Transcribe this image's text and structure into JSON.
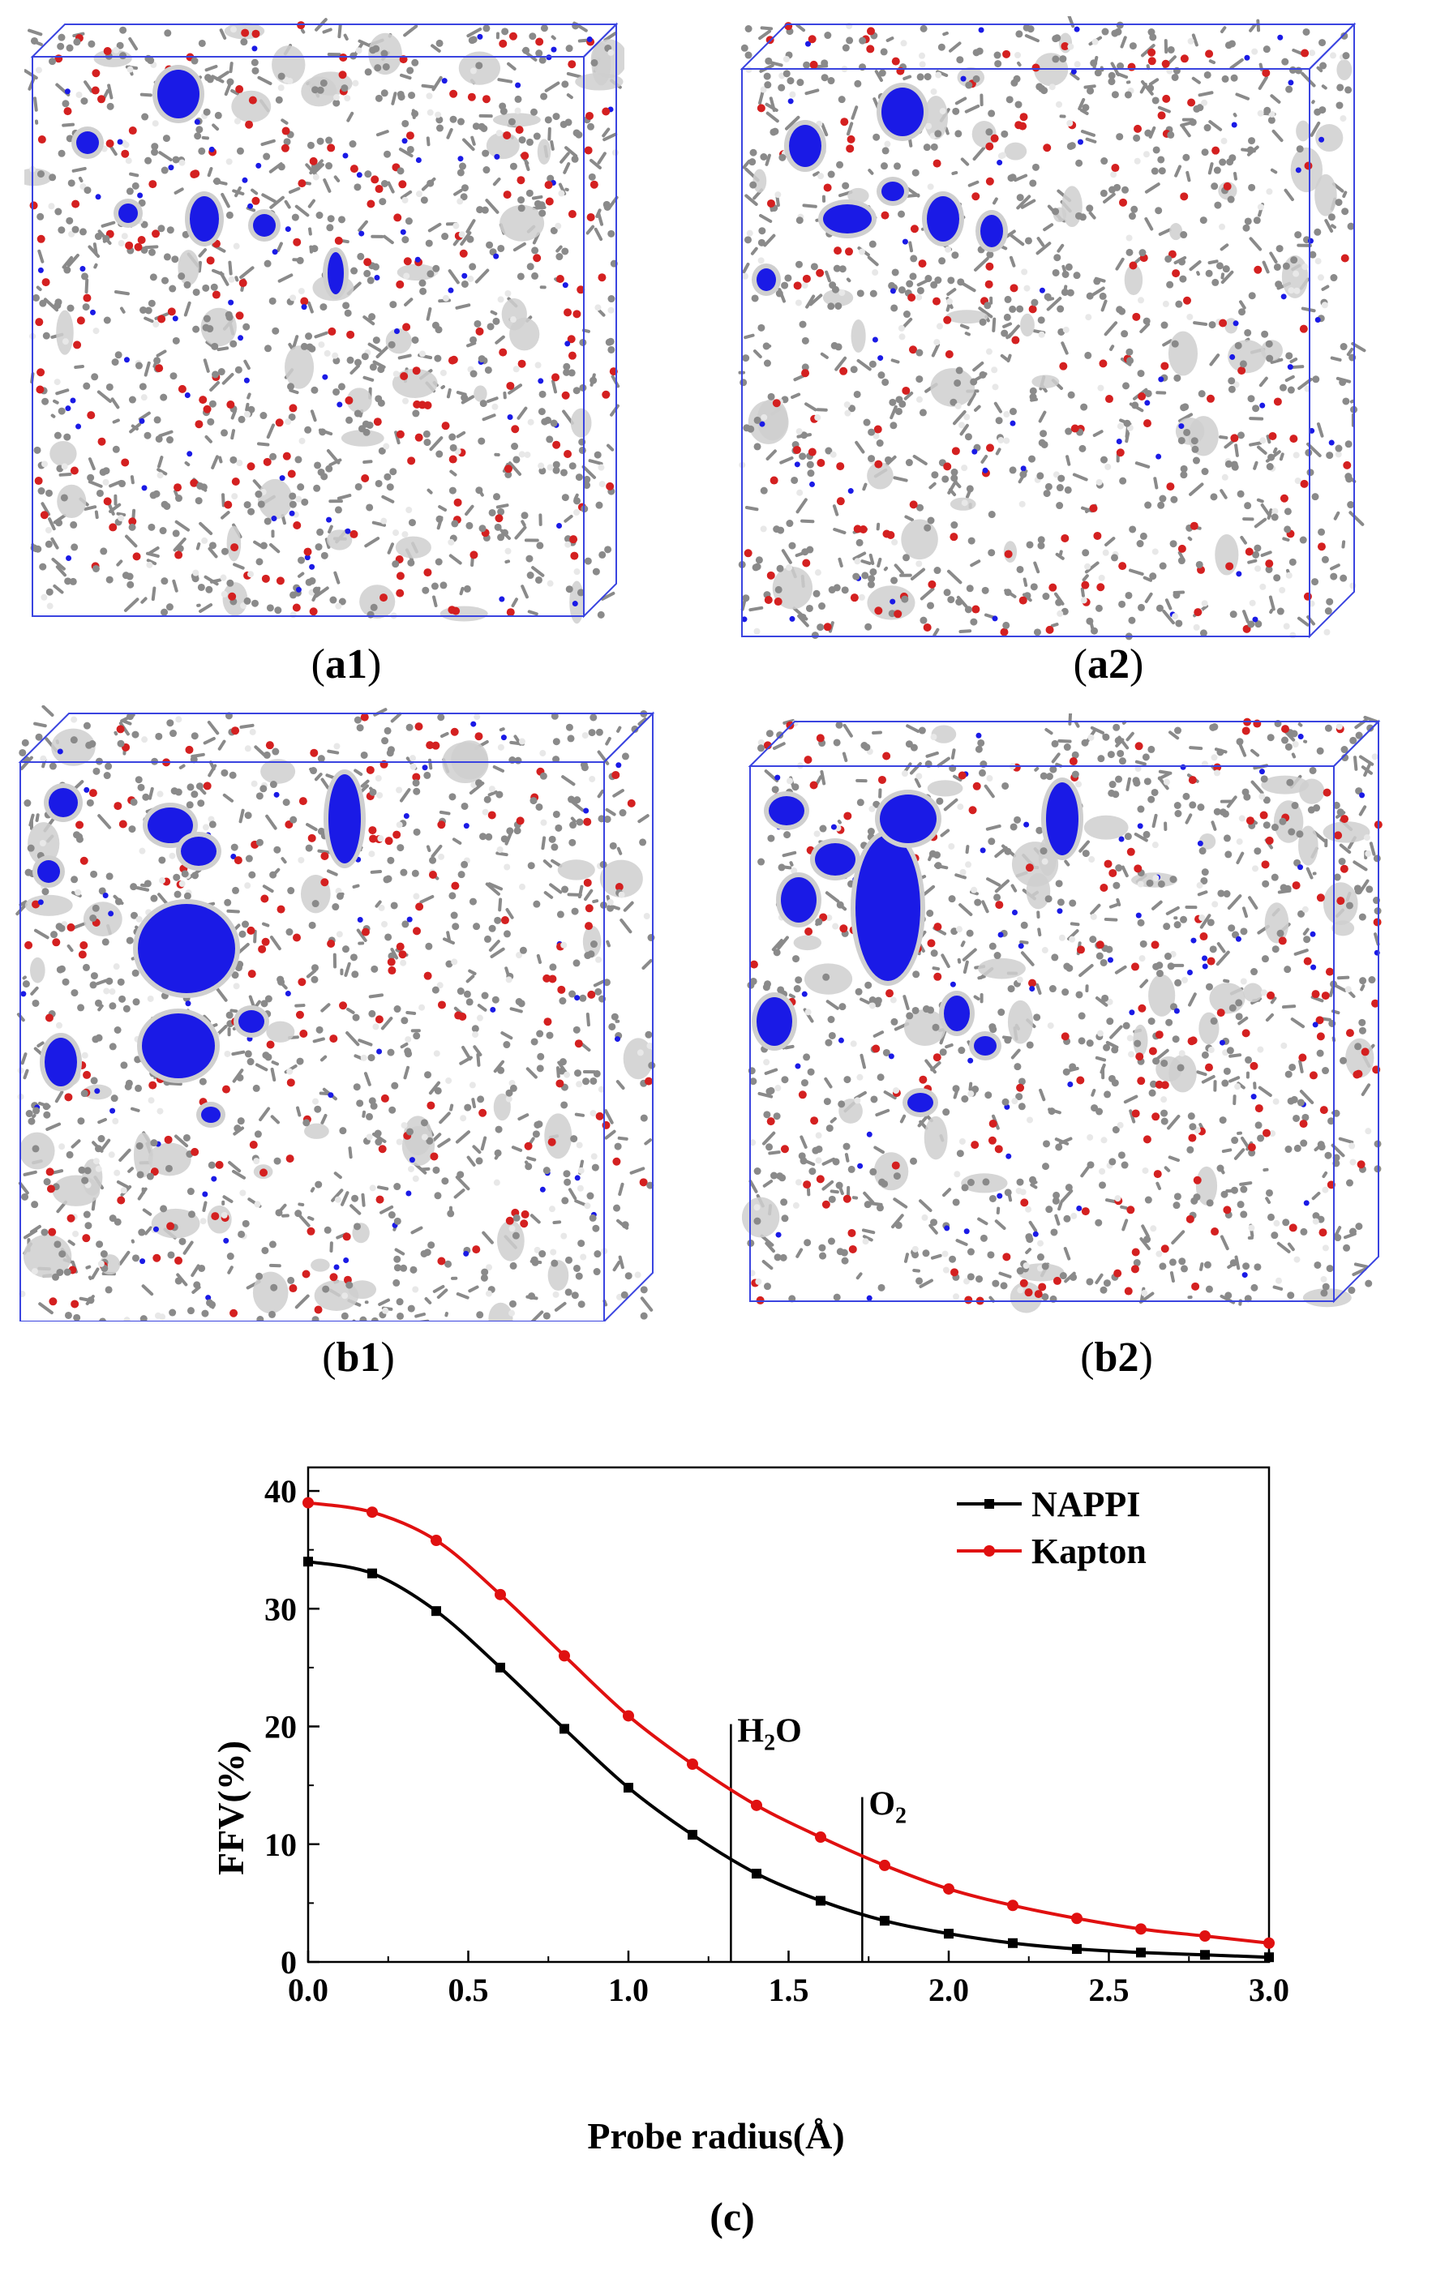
{
  "panels": [
    {
      "id": "a1",
      "caption_open": "(",
      "caption_label": "a1",
      "caption_close": ")"
    },
    {
      "id": "a2",
      "caption_open": "(",
      "caption_label": "a2",
      "caption_close": ")"
    },
    {
      "id": "b1",
      "caption_open": "(",
      "caption_label": "b1",
      "caption_close": ")"
    },
    {
      "id": "b2",
      "caption_open": "(",
      "caption_label": "b2",
      "caption_close": ")"
    }
  ],
  "colors": {
    "box": "#3a44e0",
    "void": "#1a1ae6",
    "oxygen": "#d42020",
    "carbon": "#8a8a8a",
    "hydrogen": "#e8e8e8",
    "surface": "#cfcfcf"
  },
  "chart_caption": "(c)",
  "chart_data": {
    "type": "line",
    "xlabel": "Probe radius(Å)",
    "ylabel": "FFV(%)",
    "xlim": [
      0.0,
      3.0
    ],
    "ylim": [
      0,
      42
    ],
    "xticks": [
      "0.0",
      "0.5",
      "1.0",
      "1.5",
      "2.0",
      "2.5",
      "3.0"
    ],
    "yticks": [
      "0",
      "10",
      "20",
      "30",
      "40"
    ],
    "legend_position": "top-right",
    "series": [
      {
        "name": "NAPPI",
        "color": "#000000",
        "marker": "square",
        "x": [
          0.0,
          0.2,
          0.4,
          0.6,
          0.8,
          1.0,
          1.2,
          1.4,
          1.6,
          1.8,
          2.0,
          2.2,
          2.4,
          2.6,
          2.8,
          3.0
        ],
        "y": [
          34.0,
          33.0,
          29.8,
          25.0,
          19.8,
          14.8,
          10.8,
          7.5,
          5.2,
          3.5,
          2.4,
          1.6,
          1.1,
          0.8,
          0.6,
          0.4
        ]
      },
      {
        "name": "Kapton",
        "color": "#e01010",
        "marker": "circle",
        "x": [
          0.0,
          0.2,
          0.4,
          0.6,
          0.8,
          1.0,
          1.2,
          1.4,
          1.6,
          1.8,
          2.0,
          2.2,
          2.4,
          2.6,
          2.8,
          3.0
        ],
        "y": [
          39.0,
          38.2,
          35.8,
          31.2,
          26.0,
          20.9,
          16.8,
          13.3,
          10.6,
          8.2,
          6.2,
          4.8,
          3.7,
          2.8,
          2.2,
          1.6
        ]
      }
    ],
    "annotations": [
      {
        "x": 1.32,
        "y_top": 20.2,
        "label_main": "H",
        "label_sub": "2",
        "label_tail": "O"
      },
      {
        "x": 1.73,
        "y_top": 14.0,
        "label_main": "O",
        "label_sub": "2",
        "label_tail": ""
      }
    ]
  }
}
